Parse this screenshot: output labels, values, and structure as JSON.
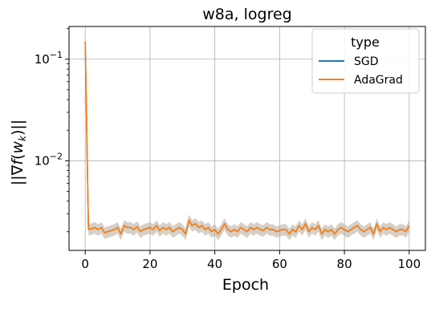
{
  "chart_data": {
    "type": "line",
    "title": "w8a, logreg",
    "xlabel": "Epoch",
    "ylabel": "||∇f(w_k)||",
    "yscale": "log",
    "xlim": [
      -5,
      105
    ],
    "ylim": [
      0.00131,
      0.21
    ],
    "xticks": [
      0,
      20,
      40,
      60,
      80,
      100
    ],
    "xtick_labels": [
      "0",
      "20",
      "40",
      "60",
      "80",
      "100"
    ],
    "yticks": [
      0.01,
      0.1
    ],
    "ytick_labels": [
      "10^-2",
      "10^-1"
    ],
    "grid": true,
    "legend": {
      "title": "type",
      "placement": "top-right",
      "entries": [
        "SGD",
        "AdaGrad"
      ]
    },
    "colors": {
      "SGD": "#1f77b4",
      "AdaGrad": "#ff7f0e",
      "band": "#b8a898"
    },
    "x": [
      0,
      1,
      2,
      3,
      4,
      5,
      6,
      7,
      8,
      9,
      10,
      11,
      12,
      13,
      14,
      15,
      16,
      17,
      18,
      19,
      20,
      21,
      22,
      23,
      24,
      25,
      26,
      27,
      28,
      29,
      30,
      31,
      32,
      33,
      34,
      35,
      36,
      37,
      38,
      39,
      40,
      41,
      42,
      43,
      44,
      45,
      46,
      47,
      48,
      49,
      50,
      51,
      52,
      53,
      54,
      55,
      56,
      57,
      58,
      59,
      60,
      61,
      62,
      63,
      64,
      65,
      66,
      67,
      68,
      69,
      70,
      71,
      72,
      73,
      74,
      75,
      76,
      77,
      78,
      79,
      80,
      81,
      82,
      83,
      84,
      85,
      86,
      87,
      88,
      89,
      90,
      91,
      92,
      93,
      94,
      95,
      96,
      97,
      98,
      99,
      100
    ],
    "series": [
      {
        "name": "SGD",
        "values": [
          0.15,
          0.0021,
          0.00215,
          0.0022,
          0.0021,
          0.0022,
          0.00195,
          0.002,
          0.00205,
          0.0021,
          0.0022,
          0.0019,
          0.0023,
          0.0022,
          0.0022,
          0.0021,
          0.00225,
          0.002,
          0.0021,
          0.00215,
          0.0022,
          0.0021,
          0.0023,
          0.00205,
          0.0022,
          0.0021,
          0.0022,
          0.002,
          0.0021,
          0.0022,
          0.0021,
          0.0019,
          0.0026,
          0.0023,
          0.0024,
          0.0022,
          0.0023,
          0.0021,
          0.0022,
          0.002,
          0.0021,
          0.0019,
          0.0021,
          0.0024,
          0.0021,
          0.002,
          0.0021,
          0.002,
          0.0022,
          0.0021,
          0.002,
          0.0022,
          0.0021,
          0.0022,
          0.0021,
          0.00205,
          0.0022,
          0.0021,
          0.0021,
          0.002,
          0.00205,
          0.0021,
          0.0021,
          0.0019,
          0.0021,
          0.002,
          0.0023,
          0.0021,
          0.0024,
          0.002,
          0.0022,
          0.0021,
          0.0023,
          0.0019,
          0.0021,
          0.002,
          0.0021,
          0.0019,
          0.0021,
          0.0022,
          0.0021,
          0.002,
          0.0021,
          0.0022,
          0.0023,
          0.0021,
          0.002,
          0.0021,
          0.0022,
          0.0019,
          0.0024,
          0.002,
          0.0022,
          0.0021,
          0.0022,
          0.0021,
          0.002,
          0.0021,
          0.0021,
          0.002,
          0.0023
        ]
      },
      {
        "name": "AdaGrad",
        "values": [
          0.15,
          0.0021,
          0.00215,
          0.0022,
          0.0021,
          0.0022,
          0.00195,
          0.002,
          0.00205,
          0.0021,
          0.0022,
          0.0019,
          0.0023,
          0.0022,
          0.0022,
          0.0021,
          0.00225,
          0.002,
          0.0021,
          0.00215,
          0.0022,
          0.0021,
          0.0023,
          0.00205,
          0.0022,
          0.0021,
          0.0022,
          0.002,
          0.0021,
          0.0022,
          0.0021,
          0.0019,
          0.0026,
          0.0023,
          0.0024,
          0.0022,
          0.0023,
          0.0021,
          0.0022,
          0.002,
          0.0021,
          0.0019,
          0.0021,
          0.0024,
          0.0021,
          0.002,
          0.0021,
          0.002,
          0.0022,
          0.0021,
          0.002,
          0.0022,
          0.0021,
          0.0022,
          0.0021,
          0.00205,
          0.0022,
          0.0021,
          0.0021,
          0.002,
          0.00205,
          0.0021,
          0.0021,
          0.0019,
          0.0021,
          0.002,
          0.0023,
          0.0021,
          0.0024,
          0.002,
          0.0022,
          0.0021,
          0.0023,
          0.0019,
          0.0021,
          0.002,
          0.0021,
          0.0019,
          0.0021,
          0.0022,
          0.0021,
          0.002,
          0.0021,
          0.0022,
          0.0023,
          0.0021,
          0.002,
          0.0021,
          0.0022,
          0.0019,
          0.0024,
          0.002,
          0.0022,
          0.0021,
          0.0022,
          0.0021,
          0.002,
          0.0021,
          0.0021,
          0.002,
          0.0023
        ]
      }
    ]
  }
}
